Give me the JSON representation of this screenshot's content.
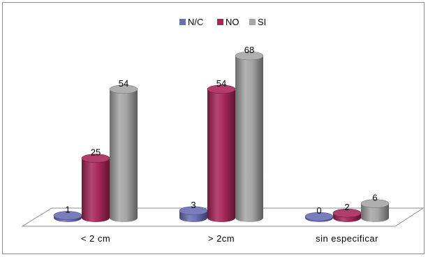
{
  "chart_data": {
    "type": "bar",
    "style": "3d-cylinder",
    "categories": [
      "< 2 cm",
      "> 2cm",
      "sin especificar"
    ],
    "series": [
      {
        "name": "N/C",
        "values": [
          1,
          3,
          0
        ],
        "color": "#6b6fb5"
      },
      {
        "name": "NO",
        "values": [
          25,
          54,
          2
        ],
        "color": "#a8275a"
      },
      {
        "name": "SI",
        "values": [
          54,
          68,
          6
        ],
        "color": "#a6a6a6"
      }
    ],
    "ylim": [
      0,
      68
    ],
    "legend_position": "top-center",
    "grid": false,
    "data_labels": true
  }
}
